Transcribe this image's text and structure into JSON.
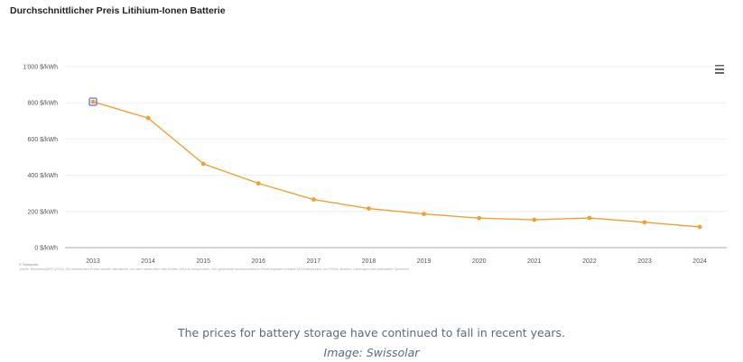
{
  "chart_data": {
    "type": "line",
    "title": "Durchschnittlicher Preis Litihium-Ionen Batterie",
    "xlabel": "",
    "ylabel": "",
    "x": [
      "2013",
      "2014",
      "2015",
      "2016",
      "2017",
      "2018",
      "2019",
      "2020",
      "2021",
      "2022",
      "2023",
      "2024"
    ],
    "series": [
      {
        "name": "Durchschnittlicher Preis",
        "values": [
          806,
          716,
          463,
          355,
          266,
          216,
          186,
          163,
          154,
          164,
          140,
          115
        ],
        "color": "#f0a030"
      }
    ],
    "ylim": [
      0,
      1000
    ],
    "yticks": [
      0,
      200,
      400,
      600,
      800,
      1000
    ],
    "ytick_labels": [
      "0 $/kWh",
      "200 $/kWh",
      "400 $/kWh",
      "600 $/kWh",
      "800 $/kWh",
      "1'000 $/kWh"
    ],
    "grid": true,
    "legend": "none",
    "highlighted_point": "2013",
    "highlight_color": "#6b6bd6"
  },
  "menu_icon": "hamburger-menu-icon",
  "credit": "© Swissolar",
  "footnote": "Quelle: BloombergNEF (2024). Die historischen Preise wurden aktualisiert, um dem realen Wert des Dollars 2024 zu entsprechen. Der gewichtete durchschnittliche Erhebungswert umfasst 343 Datenpunkte von PKWs, Bussen, Lastwagen und stationären Speichern.",
  "caption": "The prices for battery storage have continued to fall in recent years.",
  "image_source": "Image: Swissolar"
}
